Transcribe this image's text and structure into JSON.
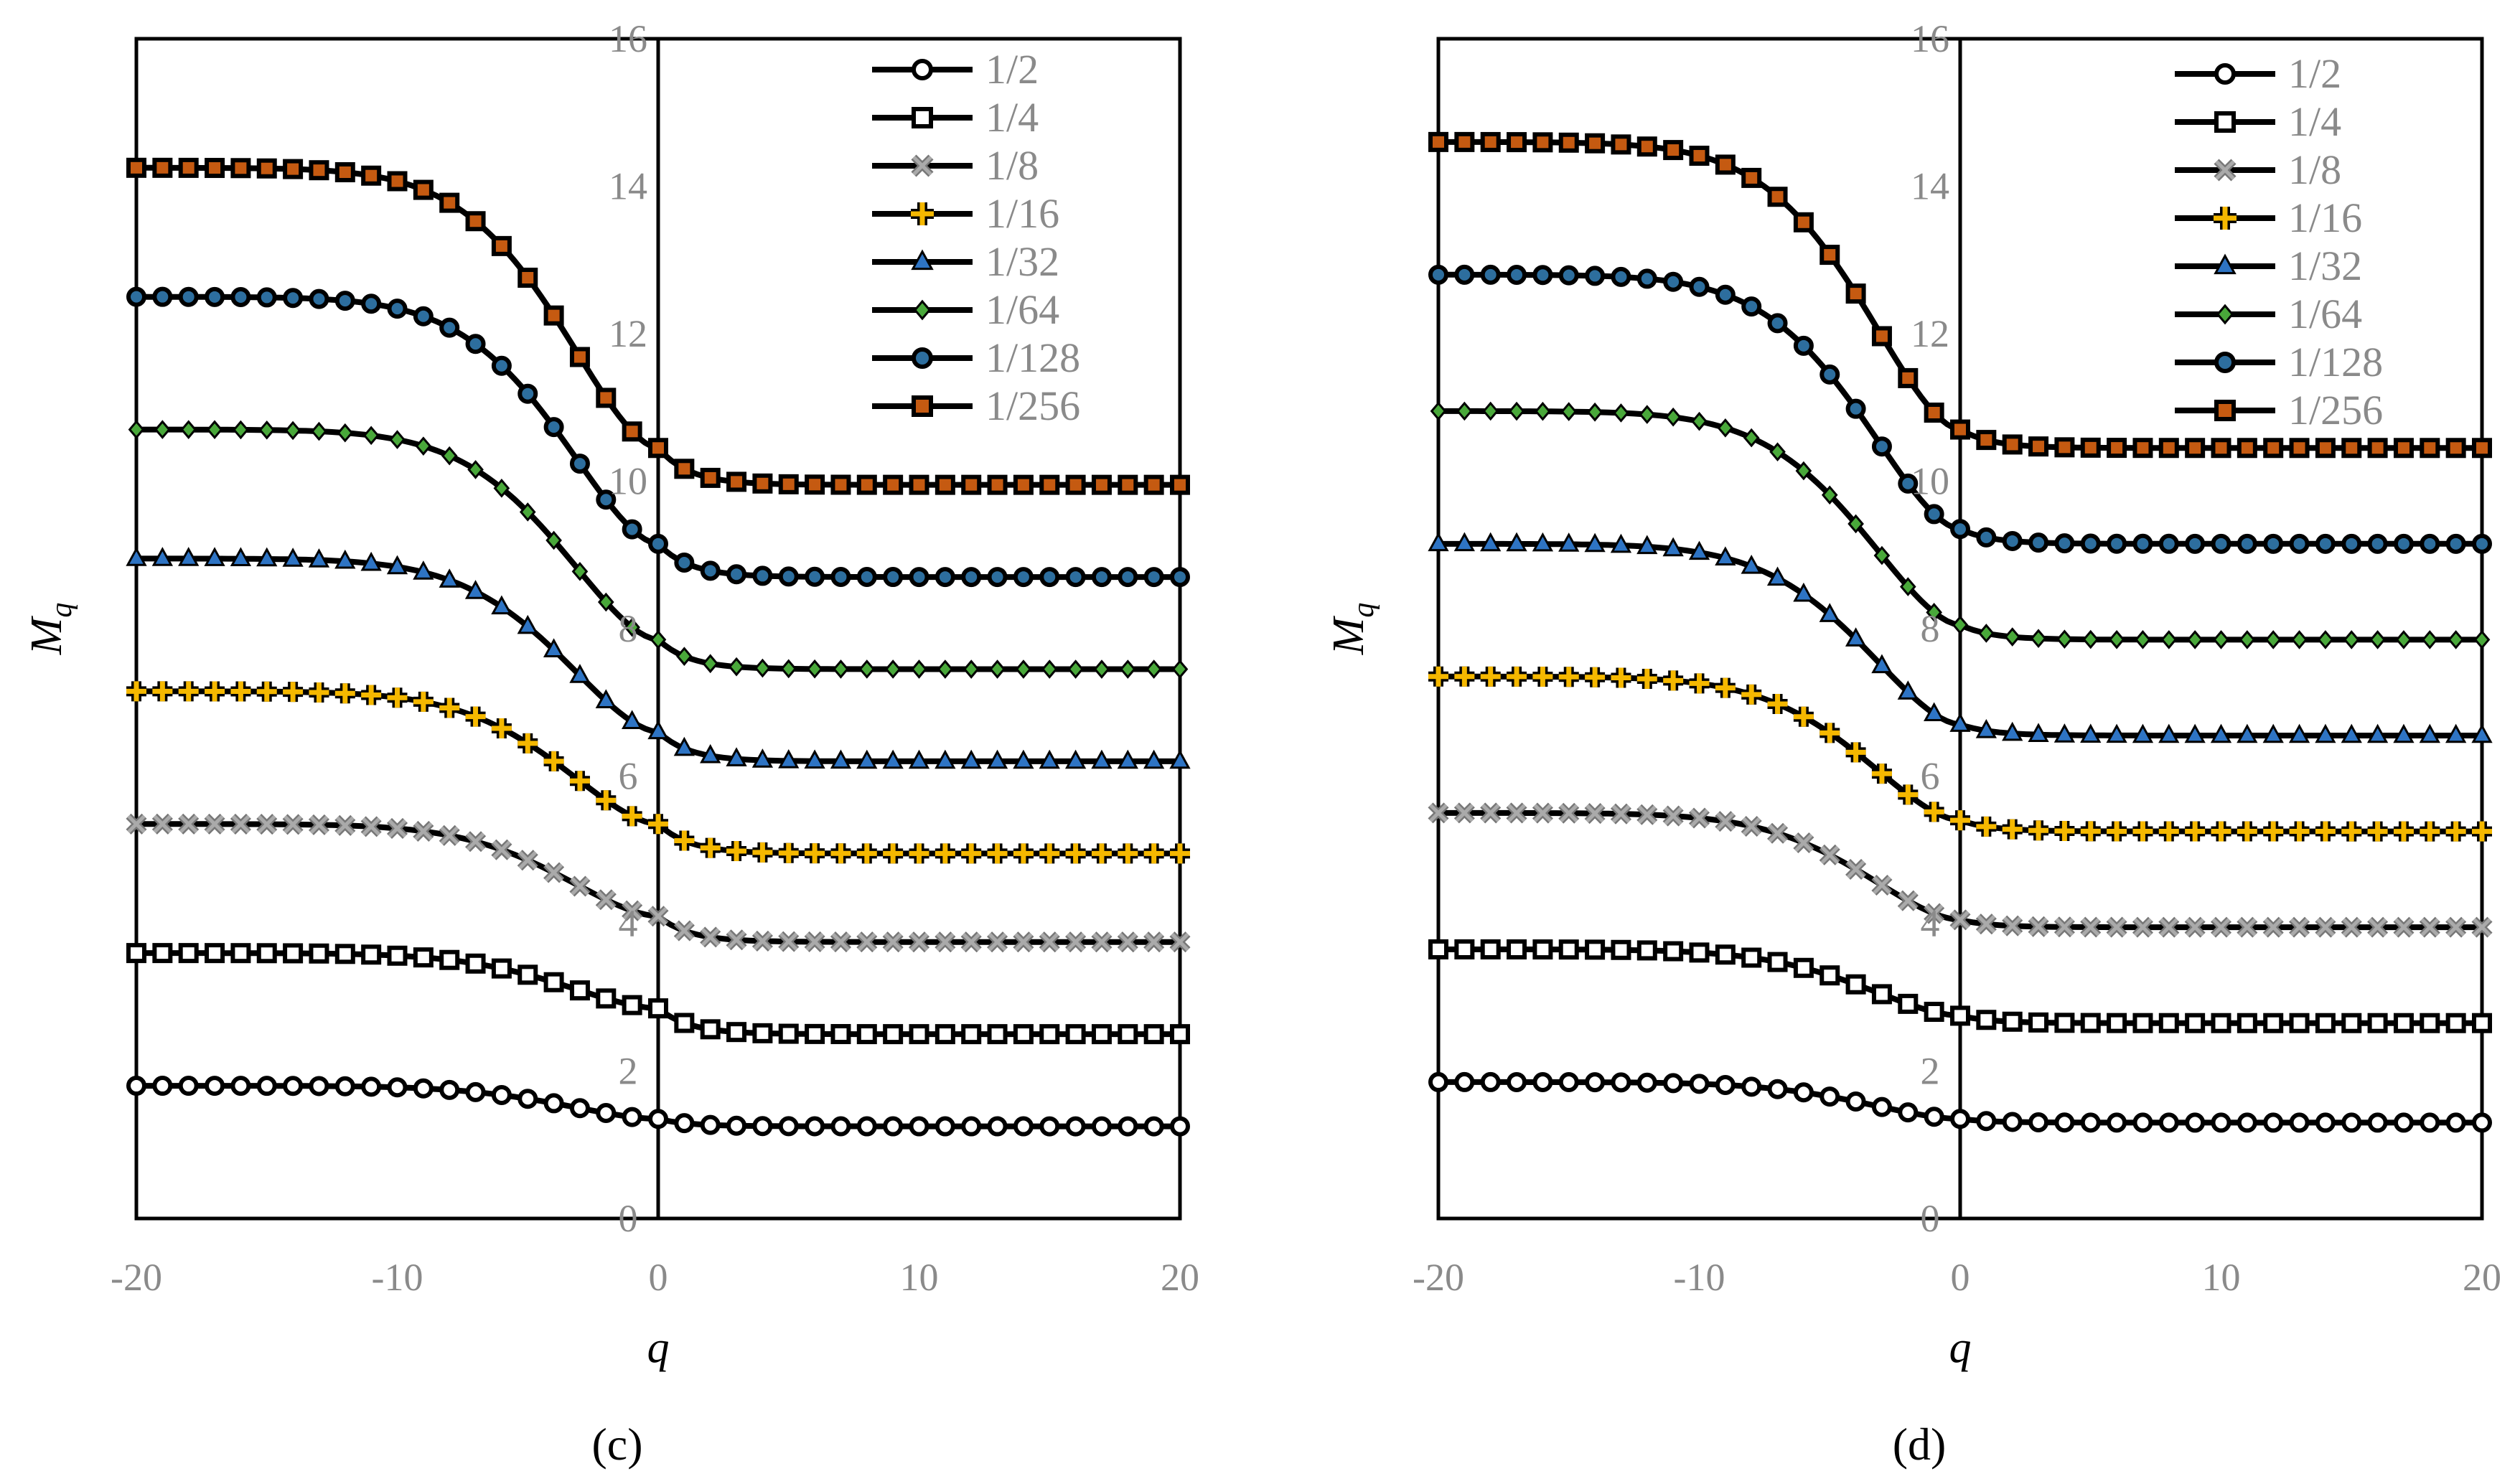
{
  "chart_data": [
    {
      "type": "line",
      "panel_label": "(c)",
      "xlabel": "q",
      "ylabel": "M",
      "ylabel_subscript": "q",
      "xlim": [
        -20,
        20
      ],
      "ylim": [
        0,
        16
      ],
      "xticks": [
        -20,
        -10,
        0,
        10,
        20
      ],
      "yticks": [
        0,
        2,
        4,
        6,
        8,
        10,
        12,
        14,
        16
      ],
      "legend_position": "top-right",
      "series": [
        {
          "name": "1/2",
          "left": 1.8,
          "zero": 1.35,
          "right": 1.25,
          "marker": "circle",
          "fill": "#ffffff",
          "color": "#000000"
        },
        {
          "name": "1/4",
          "left": 3.6,
          "zero": 2.85,
          "right": 2.5,
          "marker": "square",
          "fill": "#ffffff",
          "color": "#000000"
        },
        {
          "name": "1/8",
          "left": 5.35,
          "zero": 4.1,
          "right": 3.75,
          "marker": "x",
          "fill": "#aaaaaa",
          "color": "#000000"
        },
        {
          "name": "1/16",
          "left": 7.15,
          "zero": 5.35,
          "right": 4.95,
          "marker": "plus",
          "fill": "#f5b800",
          "color": "#000000"
        },
        {
          "name": "1/32",
          "left": 8.95,
          "zero": 6.6,
          "right": 6.2,
          "marker": "triangle",
          "fill": "#2e74c4",
          "color": "#000000"
        },
        {
          "name": "1/64",
          "left": 10.7,
          "zero": 7.85,
          "right": 7.45,
          "marker": "diamond",
          "fill": "#49a83a",
          "color": "#000000"
        },
        {
          "name": "1/128",
          "left": 12.5,
          "zero": 9.15,
          "right": 8.7,
          "marker": "circle",
          "fill": "#2d6e9e",
          "color": "#000000"
        },
        {
          "name": "1/256",
          "left": 14.25,
          "zero": 10.45,
          "right": 9.95,
          "marker": "square",
          "fill": "#c55a11",
          "color": "#000000"
        }
      ]
    },
    {
      "type": "line",
      "panel_label": "(d)",
      "xlabel": "q",
      "ylabel": "M",
      "ylabel_subscript": "q",
      "xlim": [
        -20,
        20
      ],
      "ylim": [
        0,
        16
      ],
      "xticks": [
        -20,
        -10,
        0,
        10,
        20
      ],
      "yticks": [
        0,
        2,
        4,
        6,
        8,
        10,
        12,
        14,
        16
      ],
      "legend_position": "top-right",
      "series": [
        {
          "name": "1/2",
          "left": 1.85,
          "zero": 1.35,
          "right": 1.3,
          "marker": "circle",
          "fill": "#ffffff",
          "color": "#000000"
        },
        {
          "name": "1/4",
          "left": 3.65,
          "zero": 2.75,
          "right": 2.65,
          "marker": "square",
          "fill": "#ffffff",
          "color": "#000000"
        },
        {
          "name": "1/8",
          "left": 5.5,
          "zero": 4.05,
          "right": 3.95,
          "marker": "x",
          "fill": "#aaaaaa",
          "color": "#000000"
        },
        {
          "name": "1/16",
          "left": 7.35,
          "zero": 5.4,
          "right": 5.25,
          "marker": "plus",
          "fill": "#f5b800",
          "color": "#000000"
        },
        {
          "name": "1/32",
          "left": 9.15,
          "zero": 6.7,
          "right": 6.55,
          "marker": "triangle",
          "fill": "#2e74c4",
          "color": "#000000"
        },
        {
          "name": "1/64",
          "left": 10.95,
          "zero": 8.05,
          "right": 7.85,
          "marker": "diamond",
          "fill": "#49a83a",
          "color": "#000000"
        },
        {
          "name": "1/128",
          "left": 12.8,
          "zero": 9.35,
          "right": 9.15,
          "marker": "circle",
          "fill": "#2d6e9e",
          "color": "#000000"
        },
        {
          "name": "1/256",
          "left": 14.6,
          "zero": 10.7,
          "right": 10.45,
          "marker": "square",
          "fill": "#c55a11",
          "color": "#000000"
        }
      ]
    }
  ]
}
